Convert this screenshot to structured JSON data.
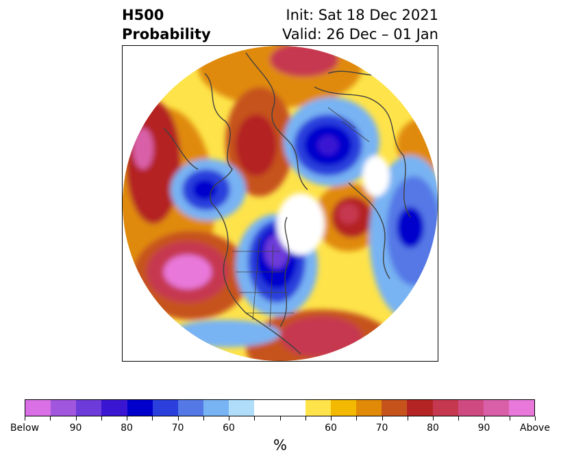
{
  "title": {
    "line1_left": "H500",
    "line2_left": "Probability",
    "line1_right": "Init: Sat 18 Dec 2021",
    "line2_right": "Valid: 26 Dec – 01 Jan"
  },
  "colorbar": {
    "colors": [
      "#d970e6",
      "#a056dd",
      "#6d3bd9",
      "#3a16d2",
      "#0000cc",
      "#2a3fdc",
      "#5478e6",
      "#78b3f3",
      "#b0ddfa",
      "#ffffff",
      "#ffffff",
      "#fee34a",
      "#f3b800",
      "#e08a08",
      "#c6531c",
      "#b42424",
      "#c63850",
      "#d04a82",
      "#d960a8",
      "#e878da"
    ],
    "labels": [
      "Below",
      "90",
      "80",
      "70",
      "60",
      "60",
      "70",
      "80",
      "90",
      "Above"
    ],
    "unit": "%"
  },
  "map_colors": {
    "below_strong": "#0000cc",
    "below_mid": "#2a3fdc",
    "below_light": "#78b3f3",
    "above_light": "#fee34a",
    "above_mid": "#e08a08",
    "above_strong": "#b42424",
    "above_extreme": "#d960a8",
    "coast": "#404040"
  }
}
